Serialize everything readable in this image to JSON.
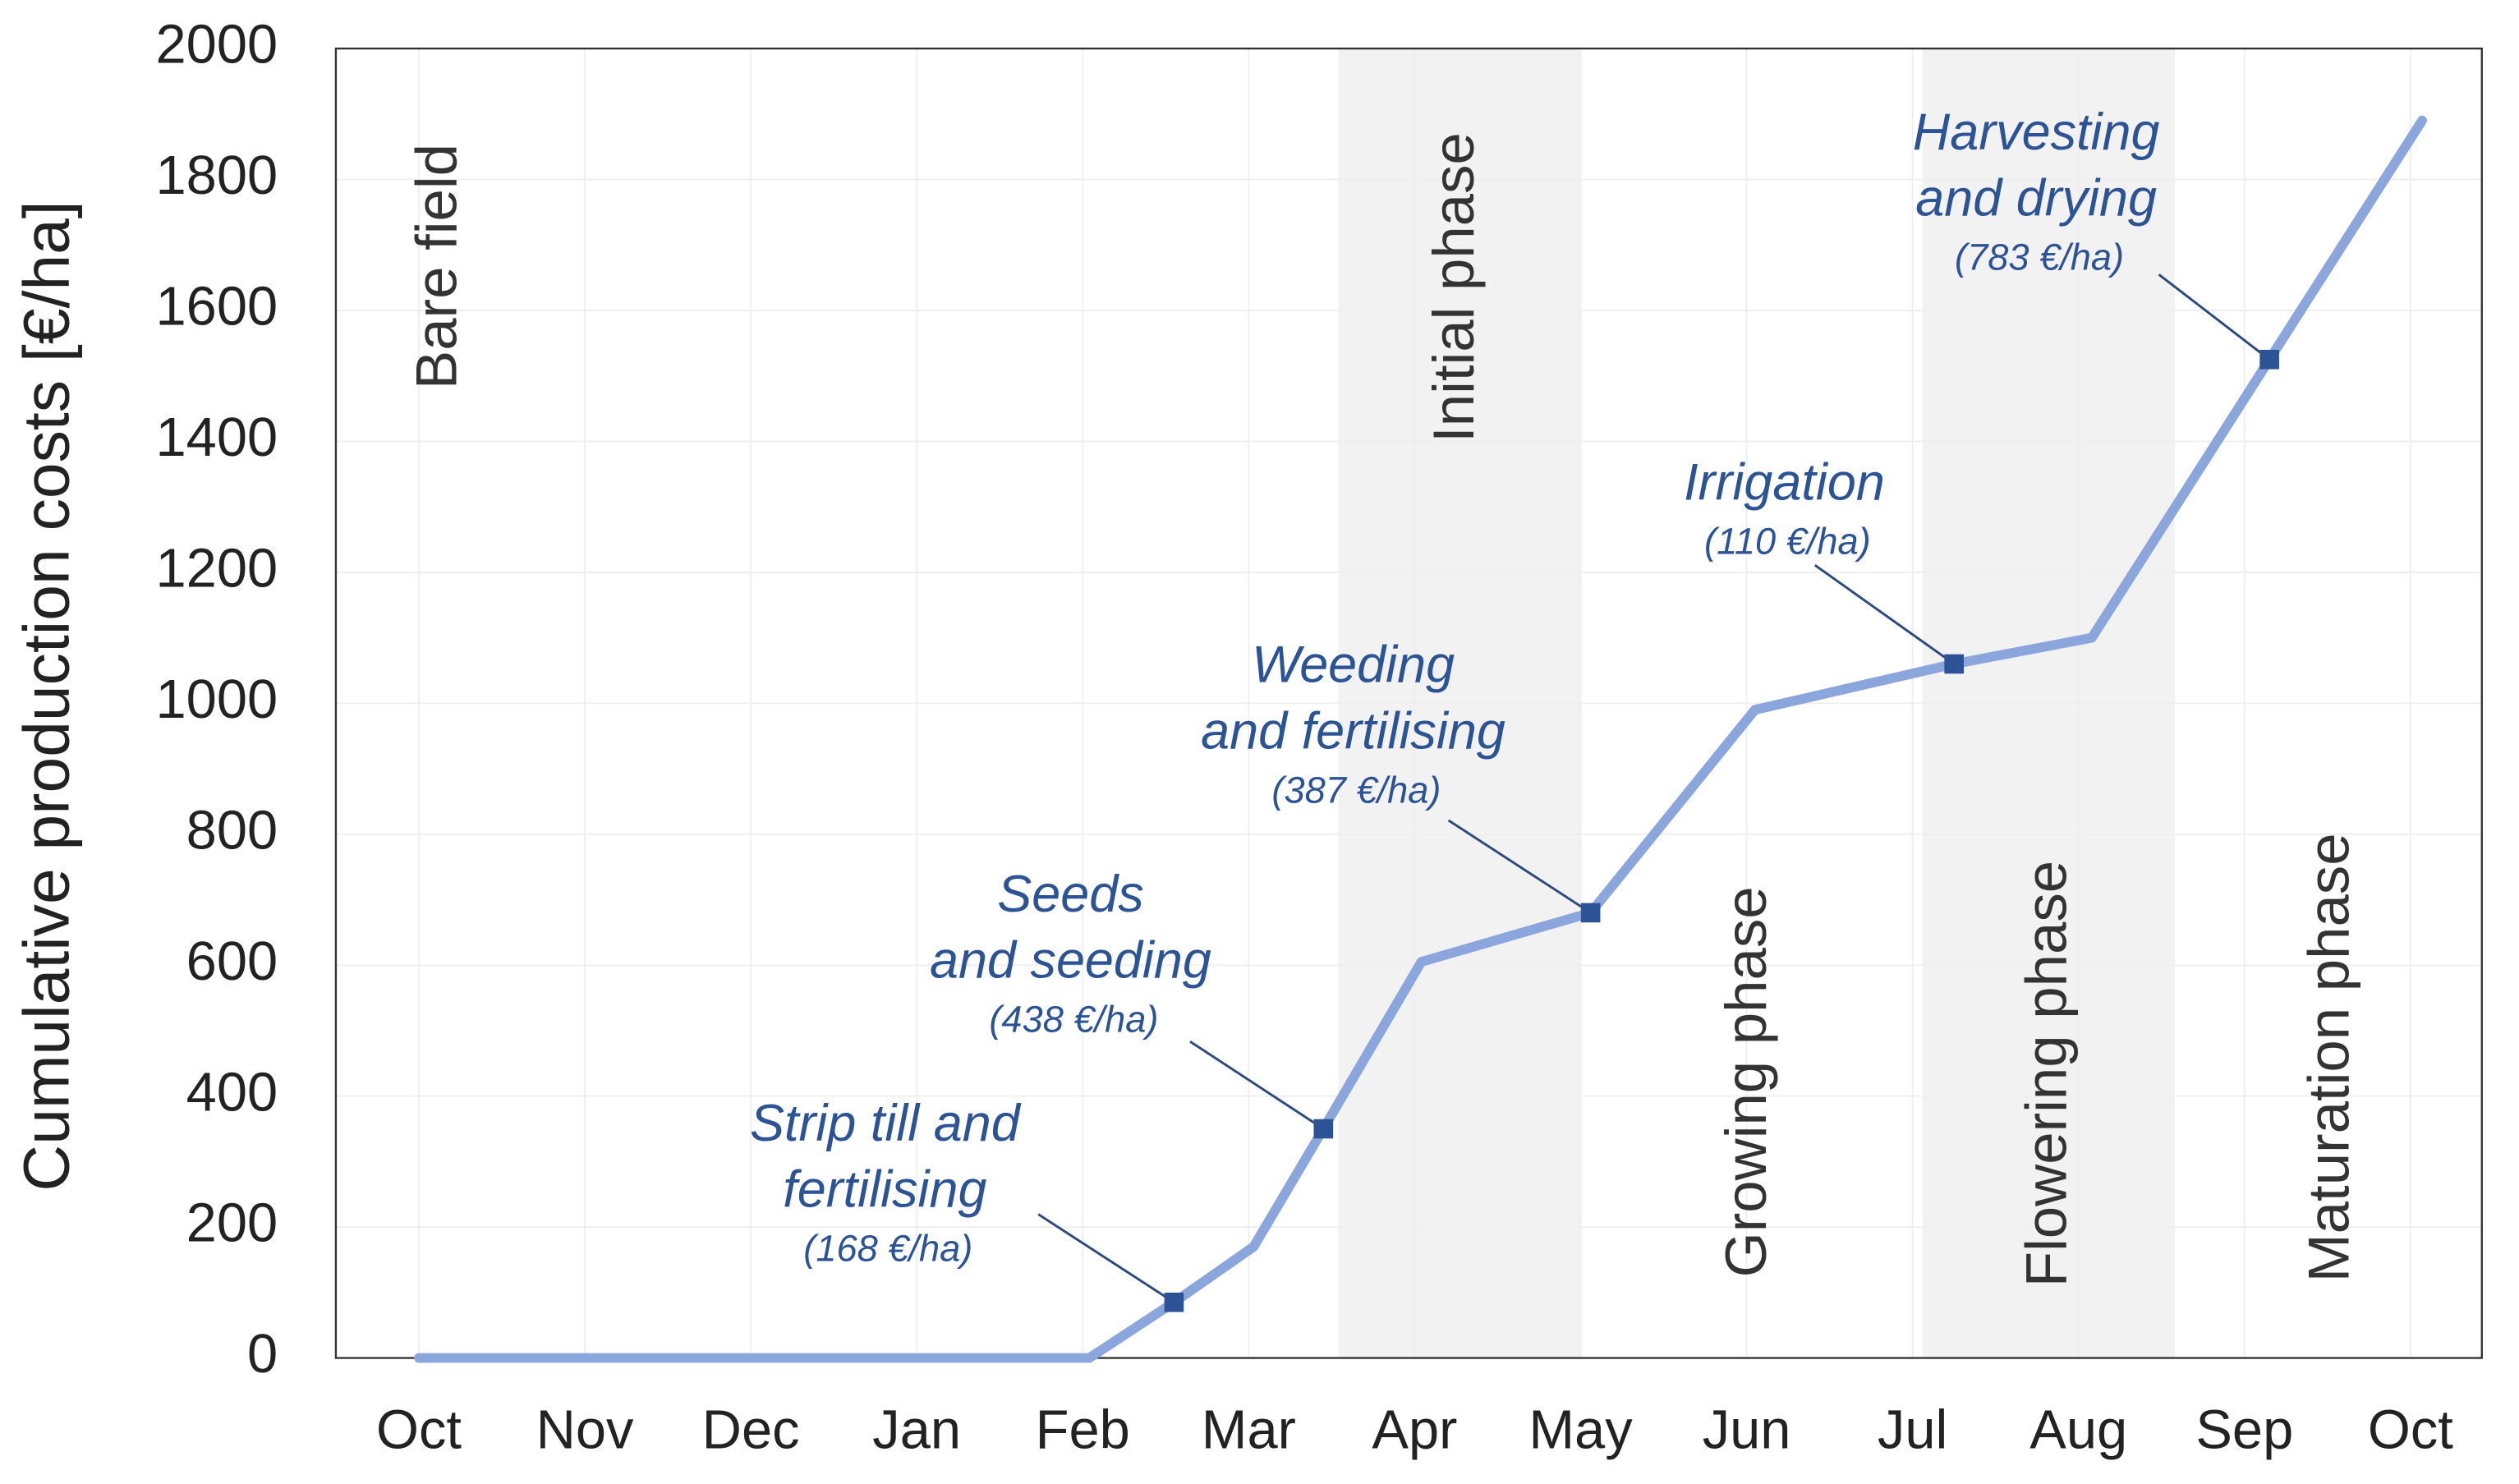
{
  "chart_data": {
    "type": "line",
    "y_label": "Cumulative production costs [€/ha]",
    "categories": [
      "Oct",
      "Nov",
      "Dec",
      "Jan",
      "Feb",
      "Mar",
      "Apr",
      "May",
      "Jun",
      "Jul",
      "Aug",
      "Sep",
      "Oct"
    ],
    "xlim": [
      -0.5,
      12.43
    ],
    "ylim": [
      0,
      2000
    ],
    "yticks": [
      0,
      200,
      400,
      600,
      800,
      1000,
      1200,
      1400,
      1600,
      1800,
      2000
    ],
    "grid": true,
    "series": [
      {
        "color": "#8aa6dc",
        "x": [
          0,
          4.04,
          4.55,
          5.03,
          5.45,
          6.04,
          7.06,
          8.05,
          9.25,
          10.08,
          11.15,
          12.07
        ],
        "values": [
          0,
          0,
          85,
          170,
          350,
          605,
          680,
          990,
          1060,
          1100,
          1525,
          1890
        ]
      }
    ],
    "annotations": [
      {
        "lines": [
          "Strip till and",
          "fertilising"
        ],
        "cost": "(168 €/ha)",
        "x": 4.55,
        "y": 85
      },
      {
        "lines": [
          "Seeds",
          "and seeding"
        ],
        "cost": "(438 €/ha)",
        "x": 5.45,
        "y": 350
      },
      {
        "lines": [
          "Weeding",
          "and fertilising"
        ],
        "cost": "(387 €/ha)",
        "x": 7.06,
        "y": 680
      },
      {
        "lines": [
          "Irrigation"
        ],
        "cost": "(110 €/ha)",
        "x": 9.25,
        "y": 1060
      },
      {
        "lines": [
          "Harvesting",
          "and drying"
        ],
        "cost": "(783 €/ha)",
        "x": 11.15,
        "y": 1525
      }
    ],
    "marker_color": "#2b5396",
    "phases": [
      {
        "label": "Bare field"
      },
      {
        "label": "Initial phase",
        "shade": [
          5.54,
          7.0
        ]
      },
      {
        "label": "Growing phase"
      },
      {
        "label": "Flowering phase",
        "shade": [
          9.06,
          10.58
        ]
      },
      {
        "label": "Maturation phase"
      }
    ]
  }
}
